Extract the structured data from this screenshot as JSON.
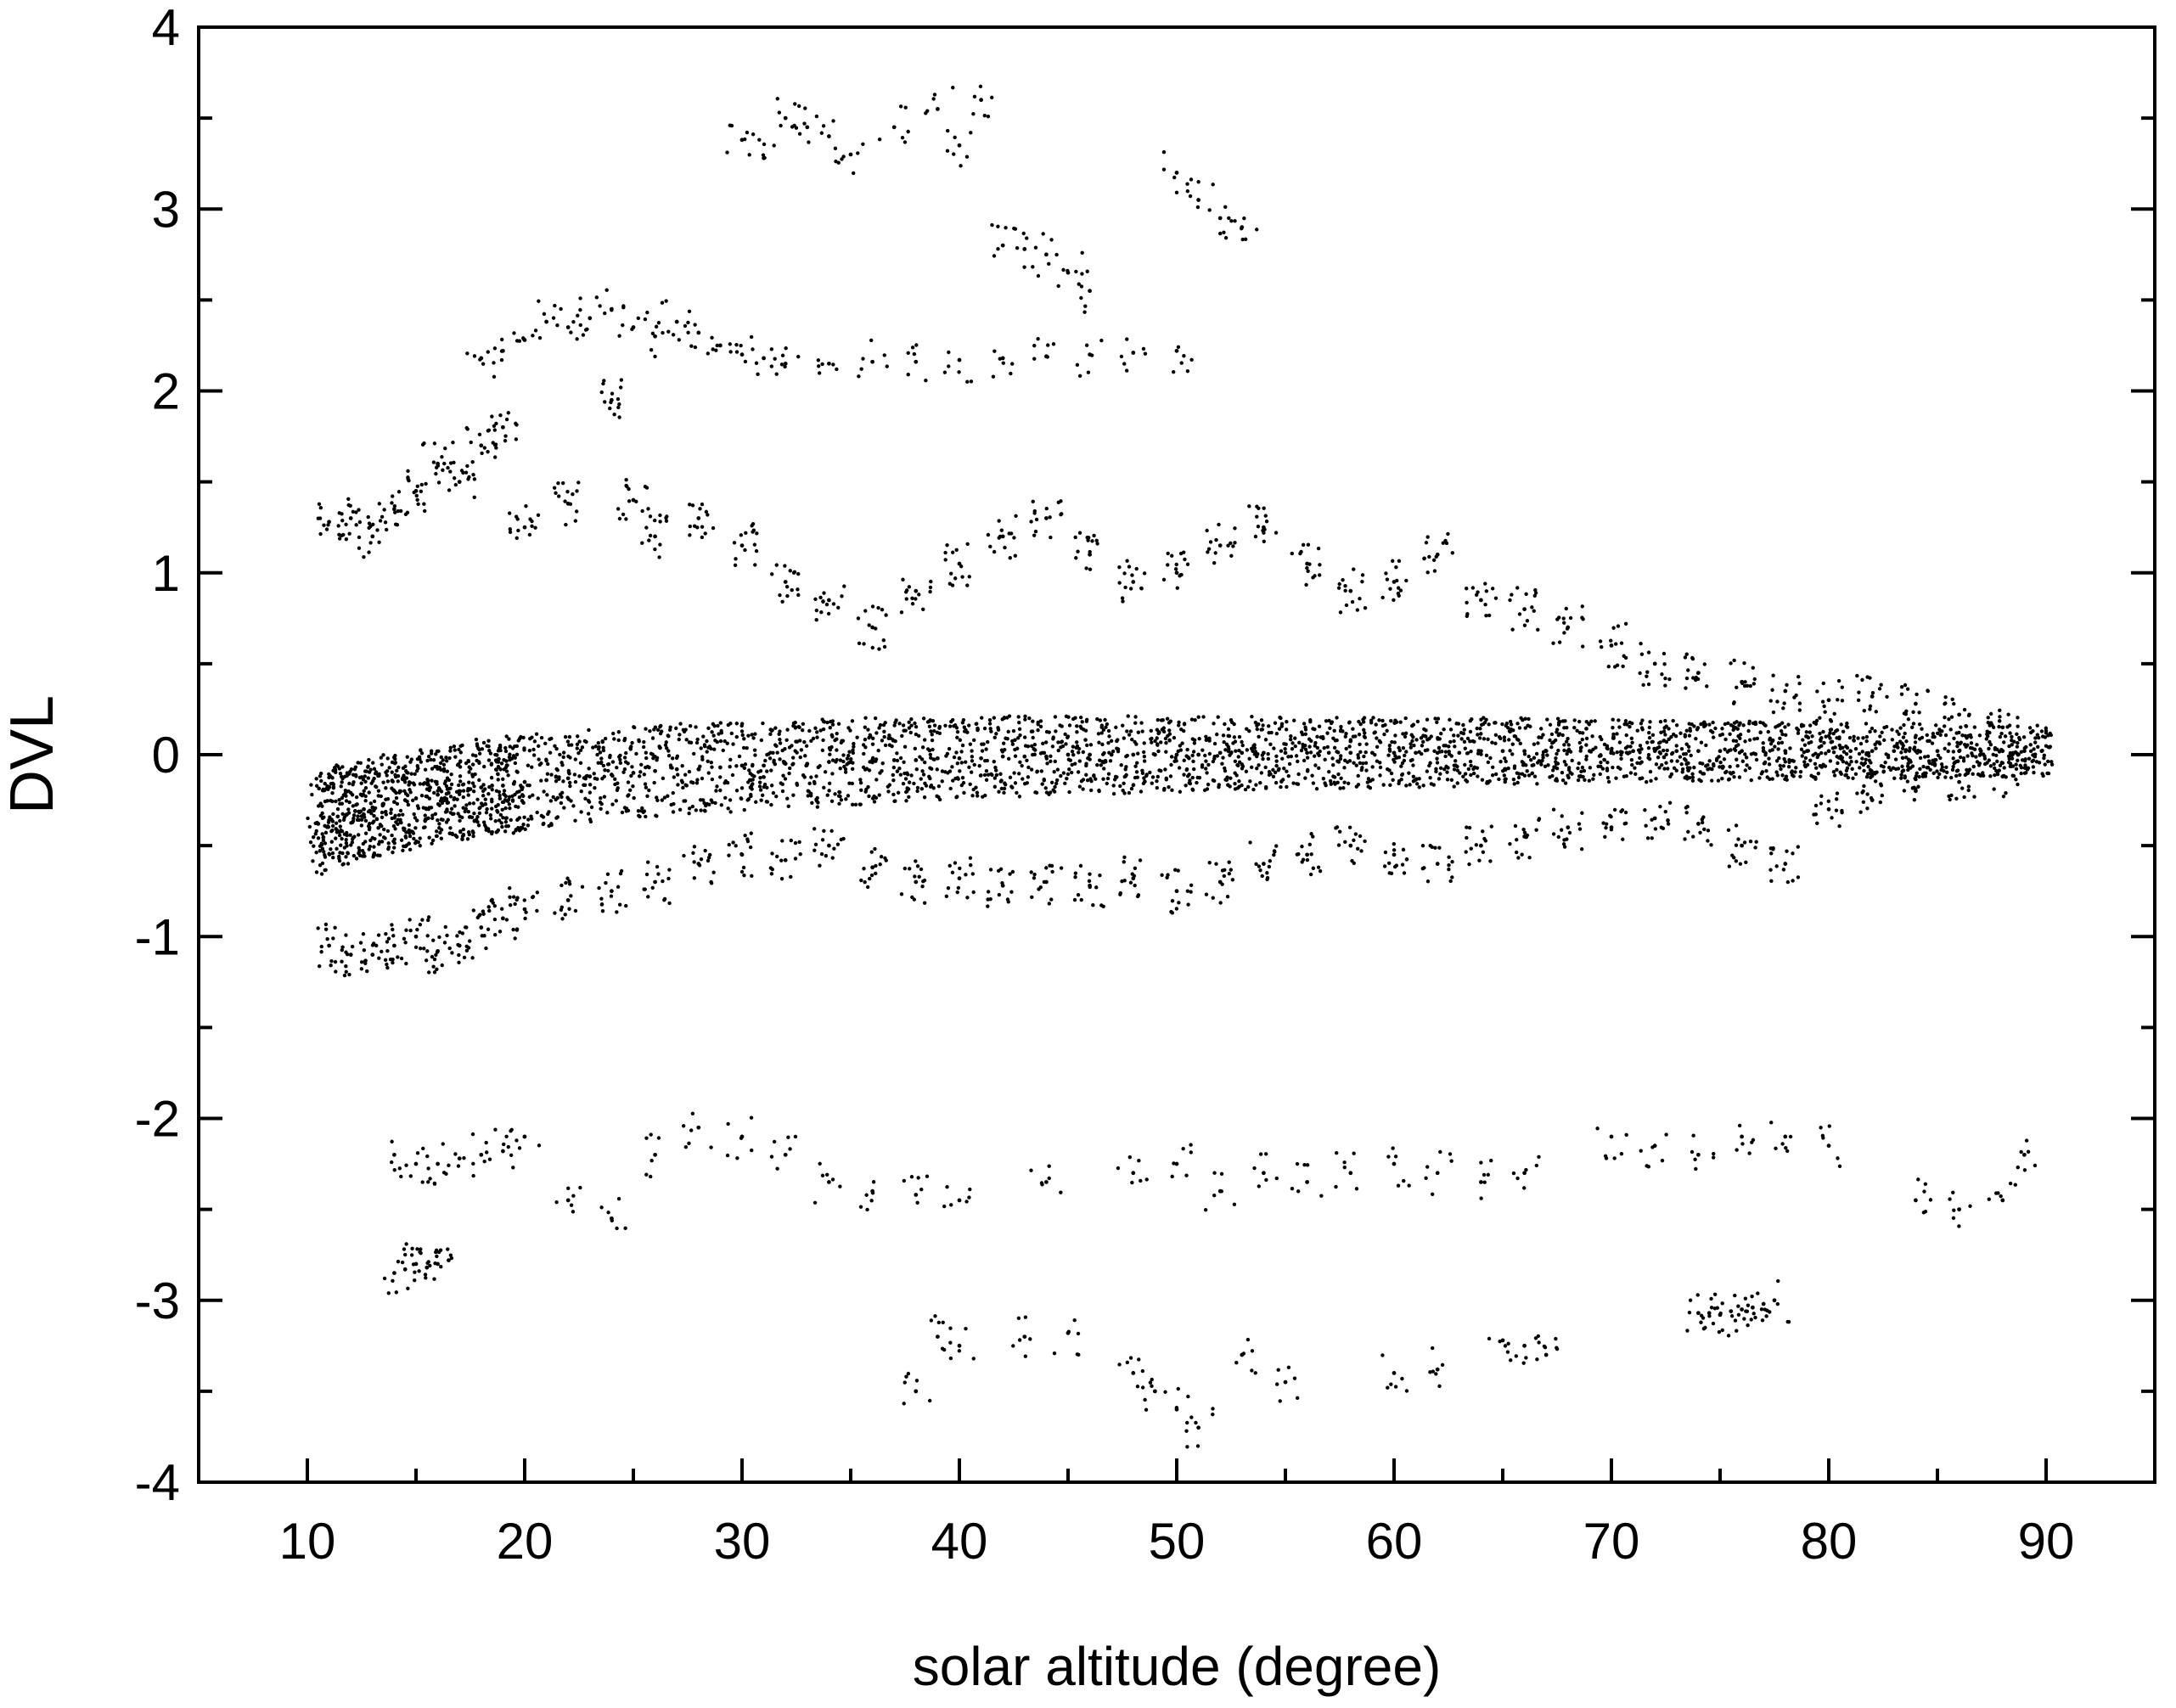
{
  "chart_data": {
    "type": "scatter",
    "title": "",
    "xlabel": "solar altitude (degree)",
    "ylabel": "DVL",
    "xlim": [
      5,
      95
    ],
    "ylim": [
      -4,
      4
    ],
    "x_ticks": [
      10,
      20,
      30,
      40,
      50,
      60,
      70,
      80,
      90
    ],
    "x_tick_labels": [
      "10",
      "20",
      "30",
      "40",
      "50",
      "60",
      "70",
      "80",
      "90"
    ],
    "y_ticks": [
      -4,
      -3,
      -2,
      -1,
      0,
      1,
      2,
      3,
      4
    ],
    "y_tick_labels": [
      "-4",
      "-3",
      "-2",
      "-1",
      "0",
      "1",
      "2",
      "3",
      "4"
    ],
    "grid": false,
    "legend": "none",
    "marker_color": "#000000",
    "series": [
      {
        "x": [
          10.5,
          11.0,
          11.4,
          11.8,
          12.2,
          12.6,
          13.0,
          13.5,
          14.0,
          14.5,
          15.0,
          15.5,
          16.0,
          16.5,
          17.0,
          17.5,
          18.0,
          18.5,
          19.0,
          19.5,
          20.0,
          21.0,
          22.0,
          23.0,
          24.0,
          25.0,
          26.0,
          27.0,
          28.0,
          29.0,
          30.0,
          31.0,
          32.0,
          33.0,
          34.0,
          35.0,
          36.0,
          37.0,
          38.0,
          39.0,
          40.0,
          41.0,
          42.0,
          43.0,
          44.0,
          45.0,
          46.0,
          47.0,
          48.0,
          49.0,
          50.0,
          51.0,
          52.0,
          53.0,
          54.0,
          55.0,
          56.0,
          57.0,
          58.0,
          59.0,
          60.0,
          61.0,
          62.0,
          63.0,
          64.0,
          65.0,
          66.0,
          67.0,
          68.0,
          69.0,
          70.0,
          71.0,
          72.0,
          73.0,
          74.0,
          75.0,
          76.0,
          77.0,
          78.0,
          79.0,
          80.0,
          81.0,
          82.0,
          83.0,
          84.0,
          85.0,
          86.0,
          87.0,
          88.0,
          89.0,
          89.8
        ],
        "y": [
          -0.38,
          -0.36,
          -0.34,
          -0.33,
          -0.31,
          -0.3,
          -0.29,
          -0.27,
          -0.26,
          -0.25,
          -0.24,
          -0.23,
          -0.22,
          -0.21,
          -0.2,
          -0.19,
          -0.18,
          -0.17,
          -0.17,
          -0.16,
          -0.15,
          -0.14,
          -0.13,
          -0.12,
          -0.11,
          -0.1,
          -0.09,
          -0.08,
          -0.08,
          -0.07,
          -0.06,
          -0.06,
          -0.05,
          -0.05,
          -0.04,
          -0.04,
          -0.03,
          -0.03,
          -0.03,
          -0.02,
          -0.02,
          -0.02,
          -0.01,
          -0.01,
          -0.01,
          0.0,
          0.0,
          0.0,
          0.0,
          0.0,
          0.0,
          0.0,
          0.01,
          0.01,
          0.01,
          0.01,
          0.01,
          0.01,
          0.01,
          0.01,
          0.01,
          0.01,
          0.01,
          0.01,
          0.02,
          0.02,
          0.02,
          0.02,
          0.02,
          0.02,
          0.02,
          0.02,
          0.02,
          0.02,
          0.02,
          0.02,
          0.02,
          0.02,
          0.02,
          0.02,
          0.02,
          0.02,
          0.02,
          0.02,
          0.02,
          0.02,
          0.02,
          0.02,
          0.02,
          0.02,
          0.02
        ]
      },
      {
        "x": [
          11.0,
          12.0,
          13.0,
          14.0,
          15.0,
          16.0,
          17.0,
          18.0,
          19.0,
          20.0,
          22.0,
          24.0,
          25.0,
          26.0,
          28.0,
          30.0,
          32.0,
          34.0,
          36.0,
          38.0,
          40.0,
          42.0,
          44.0,
          46.0,
          48.0,
          50.0,
          52.0,
          54.0,
          56.0,
          58.0,
          60.0,
          62.0,
          64.0,
          66.0,
          68.0,
          70.0,
          72.0,
          74.0,
          76.0,
          78.0,
          80.0,
          82.0,
          84.0,
          86.0,
          88.0
        ],
        "y": [
          1.28,
          1.3,
          1.2,
          1.35,
          1.45,
          1.6,
          1.5,
          1.7,
          1.8,
          1.25,
          1.38,
          1.95,
          1.4,
          1.2,
          1.3,
          1.15,
          0.95,
          0.85,
          0.7,
          0.9,
          1.05,
          1.2,
          1.3,
          1.1,
          0.95,
          1.0,
          1.15,
          1.25,
          1.05,
          0.9,
          0.95,
          1.1,
          0.85,
          0.8,
          0.7,
          0.6,
          0.5,
          0.45,
          0.4,
          0.35,
          0.3,
          0.32,
          0.28,
          0.22,
          0.15
        ]
      },
      {
        "x": [
          11.0,
          12.0,
          13.0,
          14.0,
          15.0,
          16.0,
          17.0,
          18.0,
          19.0,
          20.0,
          22.0,
          24.0,
          26.0,
          28.0,
          30.0,
          32.0,
          34.0,
          36.0,
          38.0,
          40.0,
          42.0,
          44.0,
          46.0,
          48.0,
          50.0,
          52.0,
          54.0,
          56.0,
          58.0,
          60.0,
          62.0,
          64.0,
          66.0,
          68.0,
          70.0,
          72.0,
          74.0,
          76.0,
          78.0,
          80.0,
          82.0,
          84.0,
          86.0,
          88.0
        ],
        "y": [
          -1.05,
          -1.1,
          -1.1,
          -1.05,
          -1.0,
          -1.08,
          -1.05,
          -0.95,
          -0.9,
          -0.85,
          -0.8,
          -0.75,
          -0.7,
          -0.6,
          -0.55,
          -0.58,
          -0.5,
          -0.62,
          -0.7,
          -0.68,
          -0.72,
          -0.7,
          -0.72,
          -0.68,
          -0.75,
          -0.7,
          -0.6,
          -0.55,
          -0.5,
          -0.55,
          -0.6,
          -0.5,
          -0.45,
          -0.4,
          -0.4,
          -0.35,
          -0.38,
          -0.5,
          -0.6,
          -0.3,
          -0.25,
          -0.2,
          -0.15,
          -0.12
        ]
      },
      {
        "x": [
          18.0,
          19.0,
          20.0,
          21.0,
          22.0,
          23.0,
          24.0,
          25.0,
          26.0,
          27.0,
          28.0,
          29.0,
          30.0,
          31.0,
          32.0,
          34.0,
          36.0,
          38.0,
          40.0,
          42.0,
          44.0,
          46.0,
          48.0,
          50.0
        ],
        "y": [
          2.18,
          2.22,
          2.28,
          2.38,
          2.35,
          2.4,
          2.45,
          2.35,
          2.3,
          2.38,
          2.32,
          2.25,
          2.2,
          2.18,
          2.15,
          2.15,
          2.16,
          2.16,
          2.17,
          2.18,
          2.19,
          2.2,
          2.21,
          2.22
        ]
      },
      {
        "x": [
          14.0,
          15.0,
          16.0,
          17.0,
          18.0,
          19.0,
          20.0,
          22.0,
          24.0,
          26.0,
          28.0,
          30.0,
          32.0,
          34.0,
          36.0,
          38.0,
          40.0,
          44.0,
          48.0,
          50.0,
          52.0,
          54.0,
          56.0,
          58.0,
          60.0,
          62.0,
          64.0,
          66.0,
          70.0,
          72.0,
          74.0,
          76.0,
          78.0,
          80.0,
          84.0,
          86.0,
          88.0,
          89.0
        ],
        "y": [
          -2.2,
          -2.25,
          -2.25,
          -2.22,
          -2.2,
          -2.18,
          -2.1,
          -2.45,
          -2.55,
          -2.2,
          -2.05,
          -2.1,
          -2.2,
          -2.35,
          -2.4,
          -2.42,
          -2.45,
          -2.35,
          -2.3,
          -2.25,
          -2.4,
          -2.3,
          -2.35,
          -2.3,
          -2.25,
          -2.3,
          -2.35,
          -2.3,
          -2.1,
          -2.15,
          -2.2,
          -2.1,
          -2.1,
          -2.15,
          -2.45,
          -2.5,
          -2.45,
          -2.2
        ]
      },
      {
        "x": [
          14.0,
          14.5,
          15.0,
          15.5,
          16.0,
          16.5
        ],
        "y": [
          -2.85,
          -2.83,
          -2.8,
          -2.82,
          -2.8,
          -2.78
        ]
      },
      {
        "x": [
          74.0,
          74.5,
          75.0,
          75.5,
          76.0,
          76.5,
          77.0,
          77.5
        ],
        "y": [
          -3.07,
          -3.07,
          -3.08,
          -3.06,
          -3.05,
          -3.04,
          -3.02,
          -3.0
        ]
      },
      {
        "x": [
          30.0,
          31.0,
          32.0,
          33.0,
          34.0,
          35.0,
          37.0,
          39.0,
          40.0,
          41.0,
          42.0,
          43.0,
          44.0,
          45.0,
          46.0,
          50.0,
          51.0,
          52.0,
          53.0
        ],
        "y": [
          3.38,
          3.28,
          3.5,
          3.45,
          3.4,
          3.3,
          3.45,
          3.55,
          3.35,
          3.6,
          2.8,
          2.78,
          2.75,
          2.65,
          2.55,
          3.2,
          3.05,
          2.95,
          2.9
        ]
      },
      {
        "x": [
          38.0,
          39.0,
          40.0,
          43.0,
          45.0,
          48.0,
          49.0,
          50.0,
          51.0,
          53.0,
          55.0,
          60.0,
          62.0,
          65.0,
          66.0,
          67.0
        ],
        "y": [
          -3.5,
          -3.2,
          -3.25,
          -3.2,
          -3.18,
          -3.4,
          -3.5,
          -3.6,
          -3.7,
          -3.3,
          -3.45,
          -3.4,
          -3.38,
          -3.22,
          -3.25,
          -3.3
        ]
      }
    ]
  }
}
